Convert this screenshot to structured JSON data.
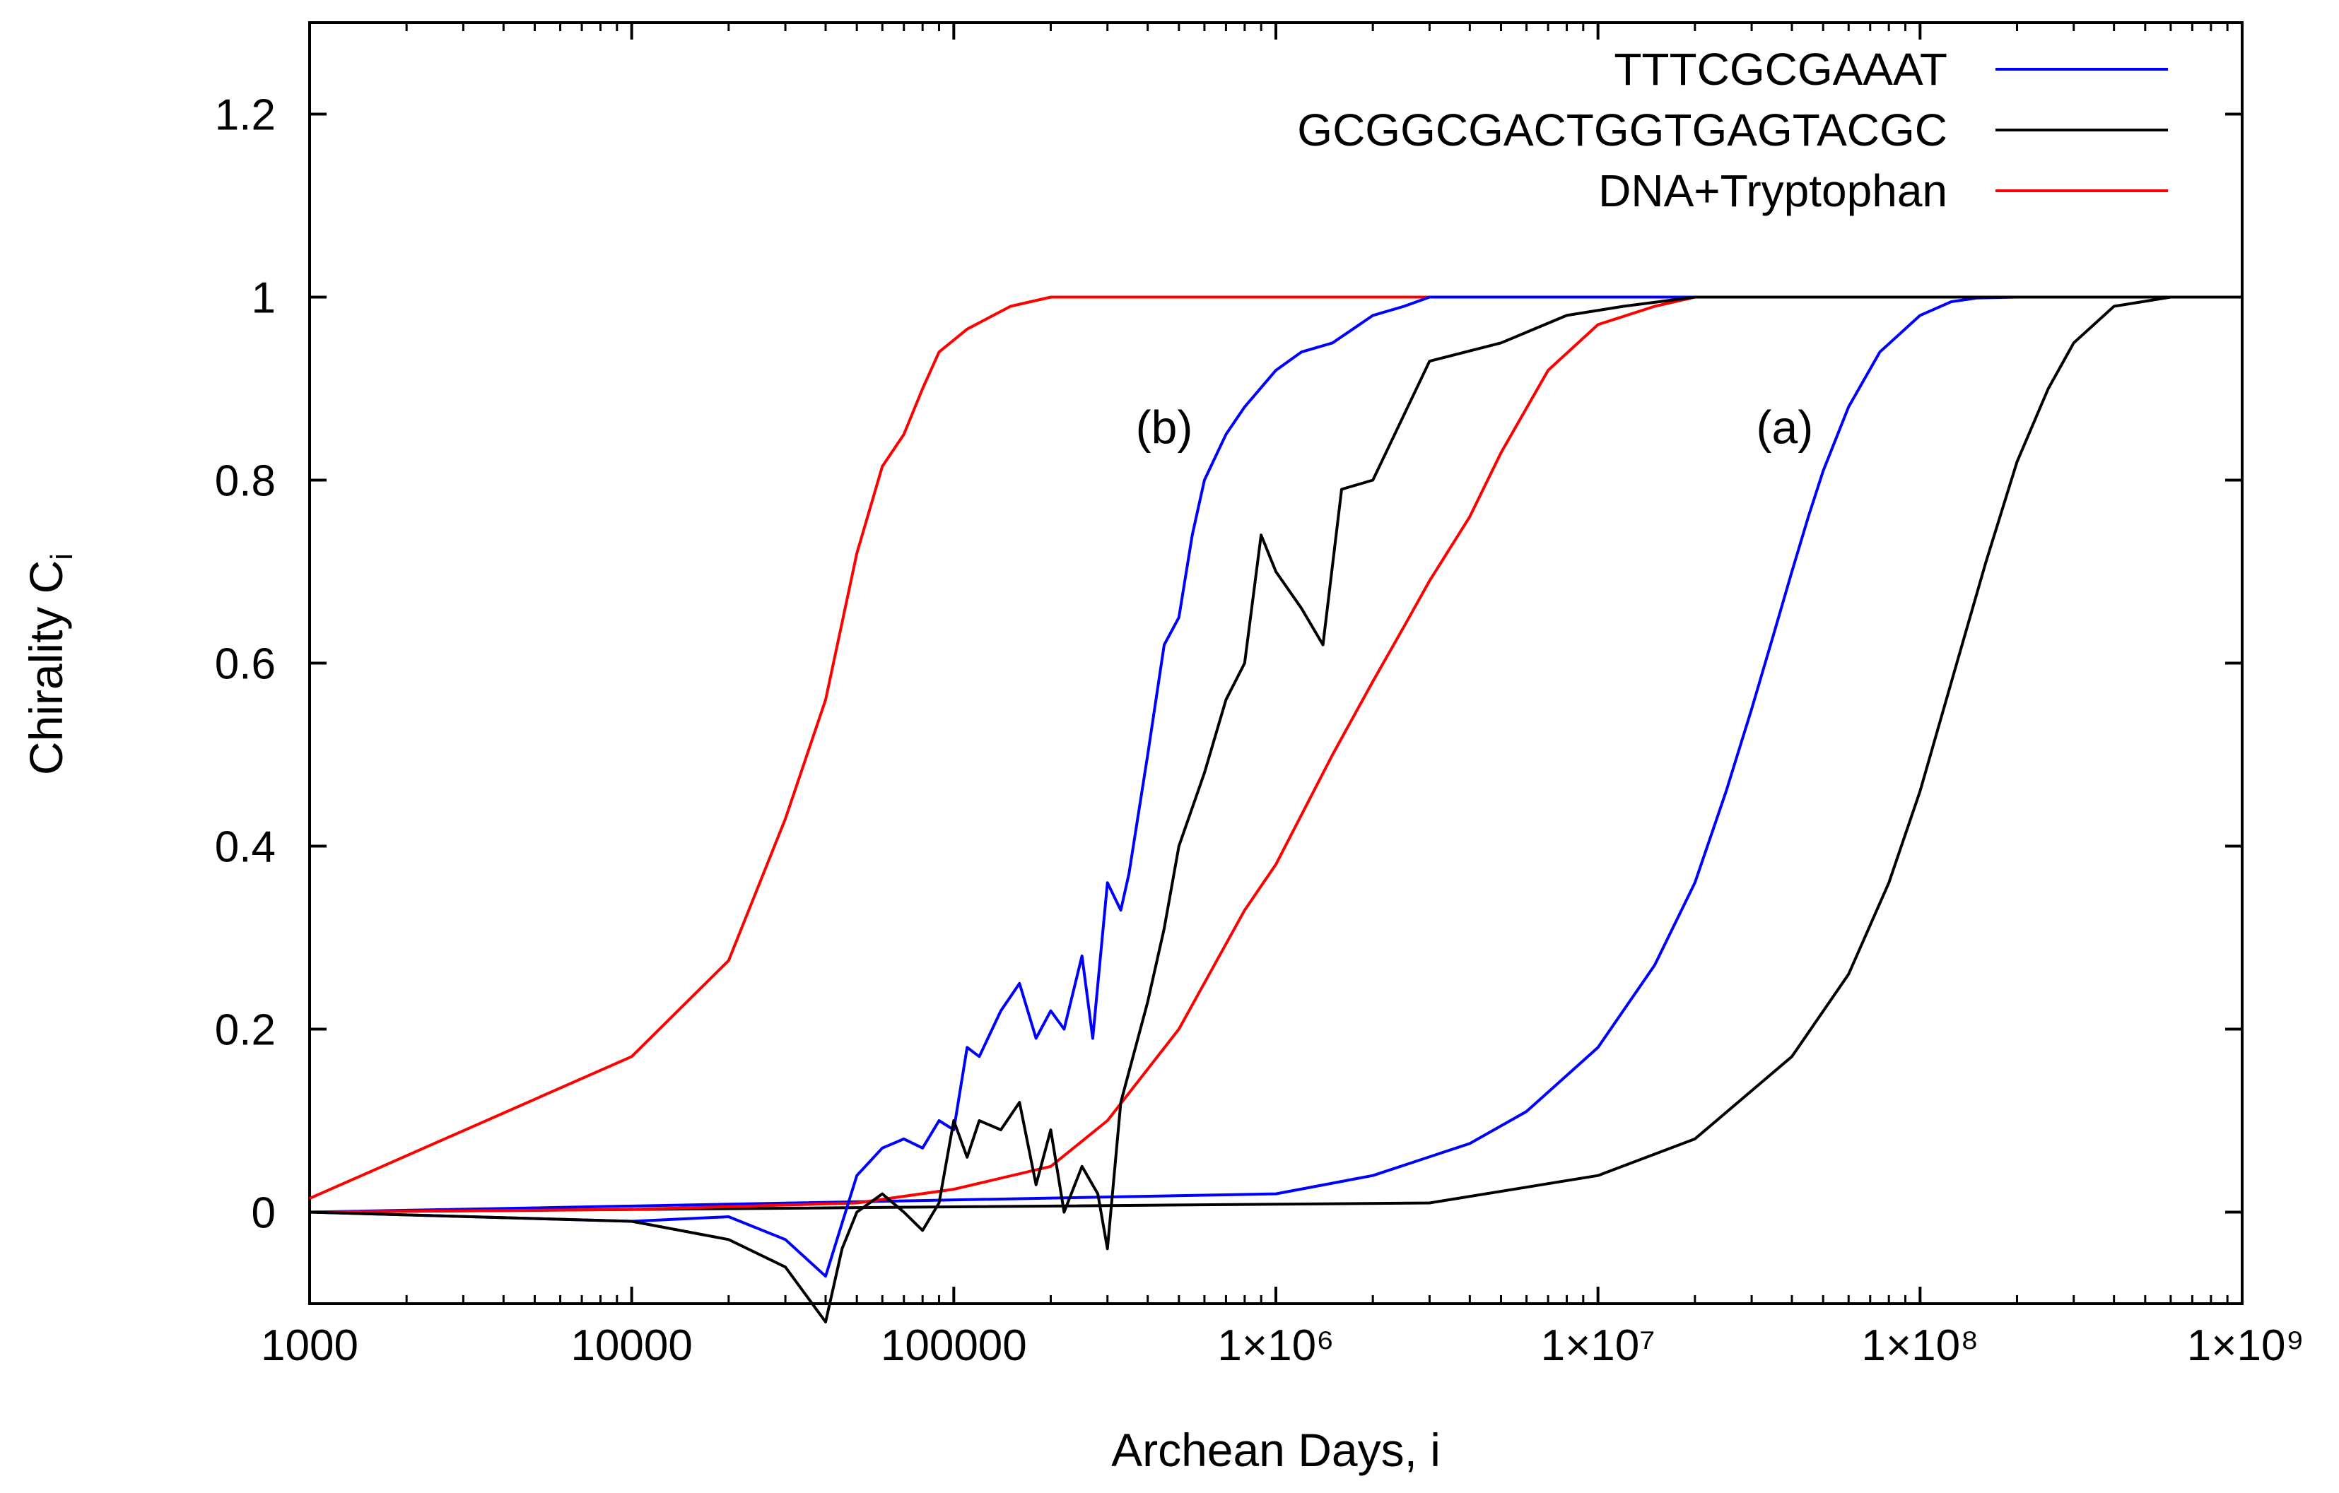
{
  "chart_data": {
    "type": "line",
    "title": "",
    "xlabel": "Archean Days, i",
    "ylabel": "Chirality C",
    "ylabel_subscript": "i",
    "x_scale": "log",
    "xlim": [
      1000,
      1000000000
    ],
    "ylim": [
      -0.1,
      1.3
    ],
    "x_ticks": [
      {
        "value": 1000,
        "label": "1000"
      },
      {
        "value": 10000,
        "label": "10000"
      },
      {
        "value": 100000,
        "label": "100000"
      },
      {
        "value": 1000000,
        "label": "1×10⁶"
      },
      {
        "value": 10000000,
        "label": "1×10⁷"
      },
      {
        "value": 100000000,
        "label": "1×10⁸"
      },
      {
        "value": 1000000000,
        "label": "1×10⁹"
      }
    ],
    "y_ticks": [
      {
        "value": 0,
        "label": "0"
      },
      {
        "value": 0.2,
        "label": "0.2"
      },
      {
        "value": 0.4,
        "label": "0.4"
      },
      {
        "value": 0.6,
        "label": "0.6"
      },
      {
        "value": 0.8,
        "label": "0.8"
      },
      {
        "value": 1,
        "label": "1"
      },
      {
        "value": 1.2,
        "label": "1.2"
      }
    ],
    "legend_position": "top-right",
    "legend": [
      {
        "label": "TTTCGCGAAAT",
        "color": "#0000ff"
      },
      {
        "label": "GCGGCGACTGGTGAGTACGC",
        "color": "#000000"
      },
      {
        "label": "DNA+Tryptophan",
        "color": "#ff0000"
      }
    ],
    "annotations": [
      {
        "text": "(b)",
        "x": 450000,
        "y": 0.84
      },
      {
        "text": "(a)",
        "x": 38000000,
        "y": 0.84
      }
    ],
    "series": [
      {
        "name": "TTTCGCGAAAT (a)",
        "color": "#0000ff",
        "x": [
          1000,
          1000000,
          2000000,
          4000000,
          6000000,
          10000000,
          15000000,
          20000000,
          25000000,
          30000000,
          35000000,
          40000000,
          45000000,
          50000000,
          60000000,
          75000000,
          100000000,
          125000000,
          150000000,
          200000000,
          1000000000
        ],
        "y": [
          0,
          0.02,
          0.04,
          0.075,
          0.11,
          0.18,
          0.27,
          0.36,
          0.46,
          0.55,
          0.63,
          0.7,
          0.76,
          0.81,
          0.88,
          0.94,
          0.98,
          0.995,
          0.999,
          1,
          1
        ]
      },
      {
        "name": "GCGGCGACTGGTGAGTACGC (a)",
        "color": "#000000",
        "x": [
          1000,
          3000000,
          10000000,
          20000000,
          40000000,
          60000000,
          80000000,
          100000000,
          130000000,
          160000000,
          200000000,
          250000000,
          300000000,
          400000000,
          600000000,
          1000000000
        ],
        "y": [
          0,
          0.01,
          0.04,
          0.08,
          0.17,
          0.26,
          0.36,
          0.46,
          0.6,
          0.71,
          0.82,
          0.9,
          0.95,
          0.99,
          1,
          1
        ]
      },
      {
        "name": "DNA+Tryptophan (a)",
        "color": "#ff0000",
        "x": [
          1000,
          10000,
          50000,
          100000,
          200000,
          300000,
          500000,
          800000,
          1000000,
          1500000,
          2000000,
          2500000,
          3000000,
          4000000,
          5000000,
          7000000,
          10000000,
          15000000,
          20000000,
          30000000,
          1000000000
        ],
        "y": [
          0,
          0.003,
          0.01,
          0.025,
          0.05,
          0.1,
          0.2,
          0.33,
          0.38,
          0.5,
          0.58,
          0.64,
          0.69,
          0.76,
          0.83,
          0.92,
          0.97,
          0.99,
          1,
          1,
          1
        ]
      },
      {
        "name": "DNA+Tryptophan (b)",
        "color": "#ff0000",
        "x": [
          1000,
          10000,
          20000,
          30000,
          40000,
          50000,
          60000,
          70000,
          80000,
          90000,
          110000,
          150000,
          200000,
          1000000000
        ],
        "y": [
          0.015,
          0.17,
          0.275,
          0.43,
          0.56,
          0.72,
          0.815,
          0.85,
          0.9,
          0.94,
          0.965,
          0.99,
          1,
          1
        ]
      },
      {
        "name": "TTTCGCGAAAT (b)",
        "color": "#0000ff",
        "x": [
          1000,
          10000,
          20000,
          30000,
          40000,
          50000,
          60000,
          70000,
          80000,
          90000,
          100000,
          110000,
          120000,
          140000,
          160000,
          180000,
          200000,
          220000,
          250000,
          270000,
          300000,
          330000,
          350000,
          400000,
          450000,
          500000,
          550000,
          600000,
          700000,
          800000,
          1000000,
          1200000,
          1500000,
          2000000,
          2500000,
          3000000,
          1000000000
        ],
        "y": [
          0,
          -0.01,
          -0.005,
          -0.03,
          -0.07,
          0.04,
          0.07,
          0.08,
          0.07,
          0.1,
          0.09,
          0.18,
          0.17,
          0.22,
          0.25,
          0.19,
          0.22,
          0.2,
          0.28,
          0.19,
          0.36,
          0.33,
          0.37,
          0.5,
          0.62,
          0.65,
          0.74,
          0.8,
          0.85,
          0.88,
          0.92,
          0.94,
          0.95,
          0.98,
          0.99,
          1,
          1
        ]
      },
      {
        "name": "GCGGCGACTGGTGAGTACGC (b)",
        "color": "#000000",
        "x": [
          1000,
          10000,
          20000,
          30000,
          40000,
          45000,
          50000,
          60000,
          70000,
          80000,
          90000,
          100000,
          110000,
          120000,
          140000,
          160000,
          180000,
          200000,
          220000,
          250000,
          280000,
          300000,
          330000,
          400000,
          450000,
          500000,
          600000,
          700000,
          800000,
          900000,
          1000000,
          1200000,
          1400000,
          1600000,
          2000000,
          3000000,
          5000000,
          8000000,
          12000000,
          20000000,
          1000000000
        ],
        "y": [
          0,
          -0.01,
          -0.03,
          -0.06,
          -0.12,
          -0.04,
          0.0,
          0.02,
          0.0,
          -0.02,
          0.01,
          0.1,
          0.06,
          0.1,
          0.09,
          0.12,
          0.03,
          0.09,
          0.0,
          0.05,
          0.02,
          -0.04,
          0.12,
          0.23,
          0.31,
          0.4,
          0.48,
          0.56,
          0.6,
          0.74,
          0.7,
          0.66,
          0.62,
          0.79,
          0.8,
          0.93,
          0.95,
          0.98,
          0.99,
          1,
          1
        ]
      }
    ]
  }
}
